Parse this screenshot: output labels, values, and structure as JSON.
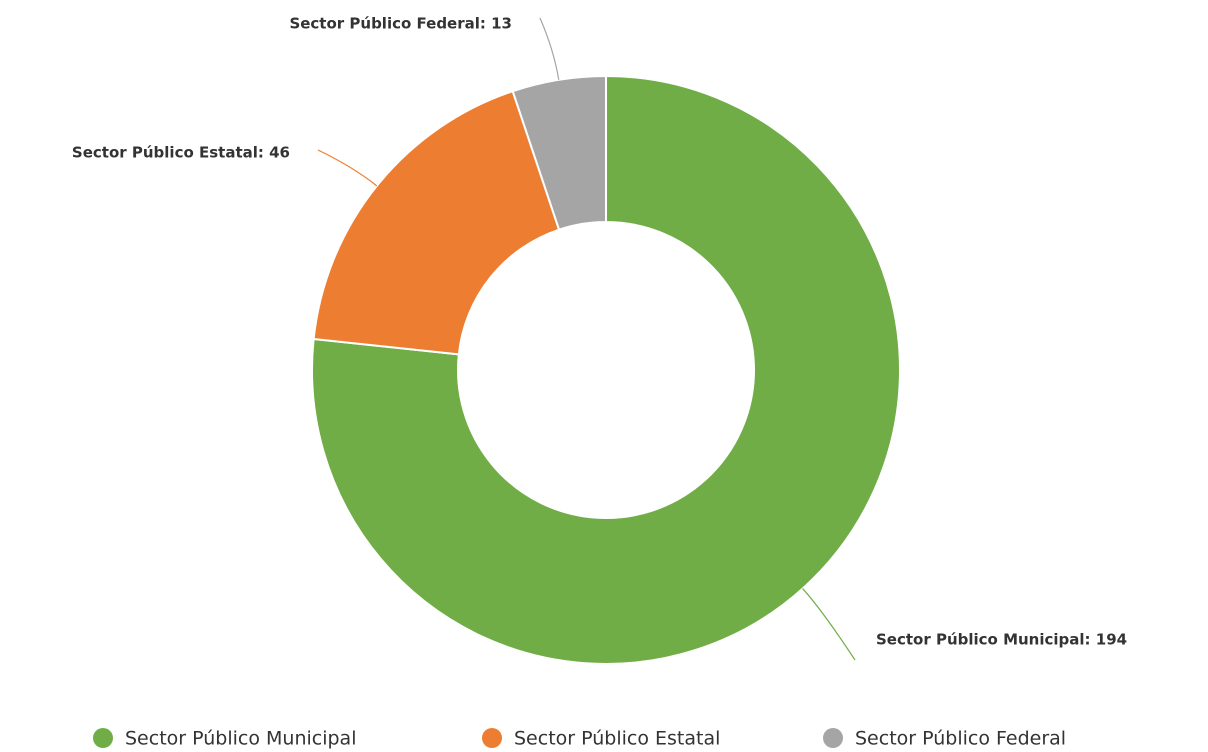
{
  "chart_data": {
    "type": "donut",
    "categories": [
      "Sector Público Municipal",
      "Sector Público Estatal",
      "Sector Público Federal"
    ],
    "values": [
      194,
      46,
      13
    ],
    "value_labels": [
      "Sector Público Municipal: 194",
      "Sector Público Estatal: 46",
      "Sector Público Federal: 13"
    ],
    "colors": [
      "#70ad47",
      "#ed7d31",
      "#a5a5a5"
    ],
    "legend": "bottom"
  }
}
